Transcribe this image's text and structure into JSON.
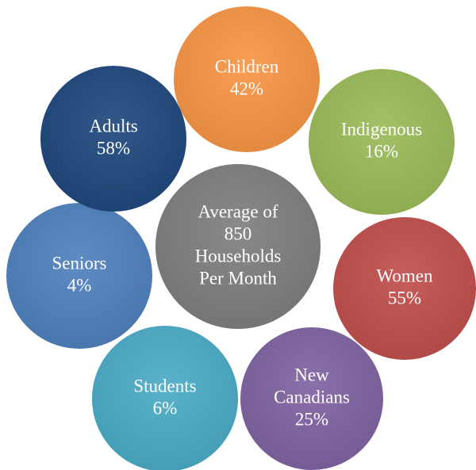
{
  "center": {
    "lines": [
      "Average of",
      "850",
      "Households",
      "Per Month"
    ]
  },
  "nodes": [
    {
      "lines": [
        "Children",
        "42%"
      ]
    },
    {
      "lines": [
        "Indigenous",
        "16%"
      ]
    },
    {
      "lines": [
        "Women",
        "55%"
      ]
    },
    {
      "lines": [
        "New",
        "Canadians",
        "25%"
      ]
    },
    {
      "lines": [
        "Students",
        "6%"
      ]
    },
    {
      "lines": [
        "Seniors",
        "4%"
      ]
    },
    {
      "lines": [
        "Adults",
        "58%"
      ]
    }
  ]
}
